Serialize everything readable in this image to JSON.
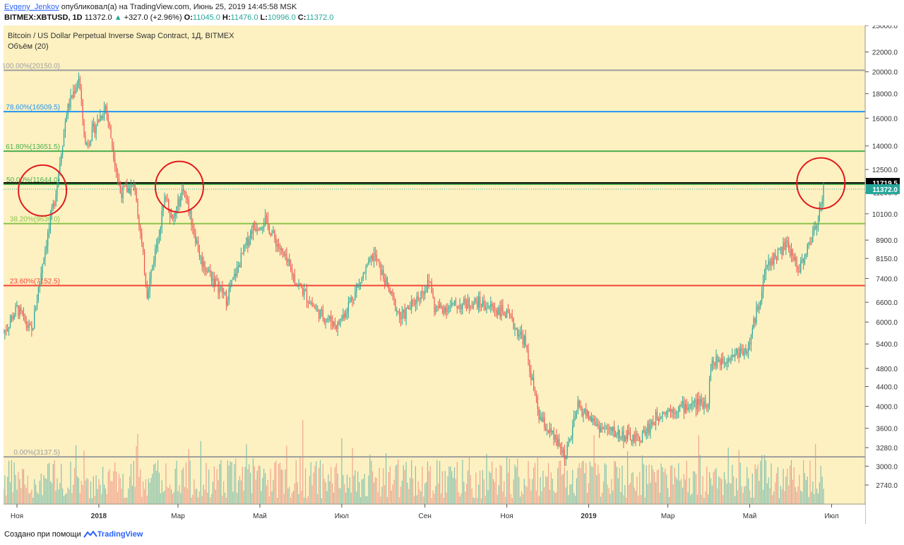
{
  "header": {
    "author": "Evgeny_Jenkov",
    "published_text": "опубликовал(а) на TradingView.com, Июнь 25, 2019 14:45:58 MSK",
    "symbol": "BITMEX:XBTUSD, 1D",
    "last": "11372.0",
    "change": "+327.0 (+2.96%)",
    "change_arrow": "▲",
    "ohlc": [
      {
        "label": "O:",
        "value": "11045.0"
      },
      {
        "label": "H:",
        "value": "11476.0"
      },
      {
        "label": "L:",
        "value": "10996.0"
      },
      {
        "label": "C:",
        "value": "11372.0"
      }
    ]
  },
  "footer": {
    "created_with": "Создано при помощи",
    "brand": "TradingView"
  },
  "colors": {
    "background": "#fdf1c1",
    "up": "#26a69a",
    "down": "#ef5350",
    "volume_up": "#86c2ae",
    "volume_down": "#f2a38f",
    "annotation": "#e31a1c"
  },
  "chart_data": {
    "type": "candlestick",
    "title": "Bitcoin / US Dollar Perpetual Inverse Swap Contract, 1Д, BITMEX",
    "subtitle": "Объём (20)",
    "y_scale": "log",
    "ylim": [
      2500,
      25000
    ],
    "y_ticks": [
      25000,
      22000,
      20000,
      18000,
      16000,
      14000,
      12500,
      11200,
      10100,
      8900,
      8150,
      7400,
      6600,
      6000,
      5400,
      4800,
      4400,
      4000,
      3600,
      3280,
      3000,
      2740
    ],
    "y_tick_labels": [
      "25000.0",
      "22000.0",
      "20000.0",
      "18000.0",
      "16000.0",
      "14000.0",
      "12500.0",
      "11200.0",
      "10100.0",
      "8900.0",
      "8150.0",
      "7400.0",
      "6600.0",
      "6000.0",
      "5400.0",
      "4800.0",
      "4400.0",
      "4000.0",
      "3600.0",
      "3280.0",
      "3000.0",
      "2740.0"
    ],
    "x_tick_labels": [
      "Ноя",
      "2018",
      "Мар",
      "Май",
      "Июл",
      "Сен",
      "Ноя",
      "2019",
      "Мар",
      "Май",
      "Июл"
    ],
    "x_range": [
      "2017-10-22",
      "2019-07-26"
    ],
    "x_tick_dates": [
      "2017-11-01",
      "2018-01-01",
      "2018-03-01",
      "2018-05-01",
      "2018-07-01",
      "2018-09-01",
      "2018-11-01",
      "2019-01-01",
      "2019-03-01",
      "2019-05-01",
      "2019-07-01"
    ],
    "fib_levels": [
      {
        "label": "100.00%(20150.0)",
        "price": 20150,
        "color": "#9e9e9e"
      },
      {
        "label": "78.60%(16509.5)",
        "price": 16509.5,
        "color": "#2196f3"
      },
      {
        "label": "61.80%(13651.5)",
        "price": 13651.5,
        "color": "#4caf50"
      },
      {
        "label": "50.00%(11644.0)",
        "price": 11644,
        "color": "#4caf50"
      },
      {
        "label": "38.20%(9636.0)",
        "price": 9636,
        "color": "#8bc34a"
      },
      {
        "label": "23.60%(7152.5)",
        "price": 7152.5,
        "color": "#f44336"
      },
      {
        "label": "0.00%(3137.5)",
        "price": 3137.5,
        "color": "#9e9e9e"
      }
    ],
    "horizontal_line": {
      "price": 11719.5,
      "color": "#000000"
    },
    "price_labels": [
      {
        "text": "11719.5",
        "price": 11719.5,
        "bg": "#000000",
        "fg": "#ffffff"
      },
      {
        "text": "11372.0",
        "price": 11372,
        "bg": "#26a69a",
        "fg": "#ffffff"
      }
    ],
    "circles": [
      {
        "date": "2017-11-20",
        "price": 11300
      },
      {
        "date": "2018-03-02",
        "price": 11500
      },
      {
        "date": "2019-06-23",
        "price": 11700
      }
    ],
    "anchors": [
      {
        "date": "2017-10-22",
        "price": 5700
      },
      {
        "date": "2017-11-01",
        "price": 6400
      },
      {
        "date": "2017-11-12",
        "price": 5700
      },
      {
        "date": "2017-11-20",
        "price": 8000
      },
      {
        "date": "2017-11-29",
        "price": 10800
      },
      {
        "date": "2017-12-08",
        "price": 16500
      },
      {
        "date": "2017-12-17",
        "price": 19500
      },
      {
        "date": "2017-12-22",
        "price": 14000
      },
      {
        "date": "2018-01-06",
        "price": 17000
      },
      {
        "date": "2018-01-17",
        "price": 11200
      },
      {
        "date": "2018-01-28",
        "price": 11500
      },
      {
        "date": "2018-02-06",
        "price": 6900
      },
      {
        "date": "2018-02-20",
        "price": 11100
      },
      {
        "date": "2018-02-25",
        "price": 9700
      },
      {
        "date": "2018-03-05",
        "price": 11500
      },
      {
        "date": "2018-03-18",
        "price": 8100
      },
      {
        "date": "2018-04-06",
        "price": 6700
      },
      {
        "date": "2018-04-25",
        "price": 9400
      },
      {
        "date": "2018-05-05",
        "price": 9800
      },
      {
        "date": "2018-05-28",
        "price": 7300
      },
      {
        "date": "2018-06-13",
        "price": 6300
      },
      {
        "date": "2018-06-28",
        "price": 5900
      },
      {
        "date": "2018-07-08",
        "price": 6700
      },
      {
        "date": "2018-07-25",
        "price": 8300
      },
      {
        "date": "2018-08-14",
        "price": 6100
      },
      {
        "date": "2018-09-05",
        "price": 7300
      },
      {
        "date": "2018-09-08",
        "price": 6400
      },
      {
        "date": "2018-10-10",
        "price": 6600
      },
      {
        "date": "2018-10-30",
        "price": 6300
      },
      {
        "date": "2018-11-14",
        "price": 5500
      },
      {
        "date": "2018-11-25",
        "price": 3800
      },
      {
        "date": "2018-12-15",
        "price": 3150
      },
      {
        "date": "2018-12-24",
        "price": 4000
      },
      {
        "date": "2019-01-10",
        "price": 3600
      },
      {
        "date": "2019-02-07",
        "price": 3400
      },
      {
        "date": "2019-02-24",
        "price": 3900
      },
      {
        "date": "2019-03-31",
        "price": 4100
      },
      {
        "date": "2019-04-02",
        "price": 4900
      },
      {
        "date": "2019-04-30",
        "price": 5300
      },
      {
        "date": "2019-05-14",
        "price": 7900
      },
      {
        "date": "2019-05-28",
        "price": 8700
      },
      {
        "date": "2019-06-07",
        "price": 7800
      },
      {
        "date": "2019-06-15",
        "price": 8800
      },
      {
        "date": "2019-06-21",
        "price": 10000
      },
      {
        "date": "2019-06-25",
        "price": 11372
      }
    ]
  }
}
